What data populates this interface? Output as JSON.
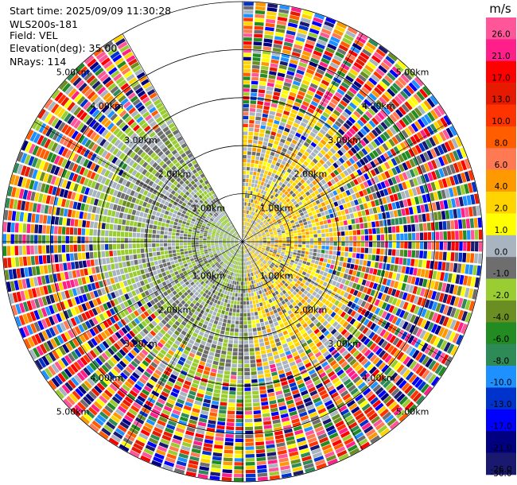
{
  "header": {
    "start_time": "Start time: 2025/09/09 11:30:28",
    "instrument": "WLS200s-181",
    "field": "Field: VEL",
    "elevation": "Elevation(deg): 35.00",
    "nrays": "NRays: 114"
  },
  "chart_data": {
    "type": "heatmap",
    "projection": "polar-ppi",
    "field": "VEL",
    "units": "m/s",
    "range_ring_labels": [
      "1.00km",
      "2.00km",
      "3.00km",
      "4.00km",
      "5.00km"
    ],
    "range_rings_km": [
      1,
      2,
      3,
      4,
      5
    ],
    "max_range_km": 5,
    "n_rays": 114,
    "gap_azimuth_deg": [
      330,
      360
    ],
    "colorbar": {
      "unit_label": "m/s",
      "ticks": [
        "26.0",
        "21.0",
        "17.0",
        "13.0",
        "10.0",
        "8.0",
        "6.0",
        "4.0",
        "2.0",
        "1.0",
        "0.0",
        "-1.0",
        "-2.0",
        "-4.0",
        "-6.0",
        "-8.0",
        "-10.0",
        "-13.0",
        "-17.0",
        "-21.0",
        "-26.0",
        "-30.0"
      ],
      "colors": [
        "#ff5599",
        "#ff1e8a",
        "#ff0000",
        "#e61a00",
        "#ff3300",
        "#ff5d00",
        "#ff7a52",
        "#ff9900",
        "#ffd400",
        "#ffff00",
        "#a8b4c0",
        "#6e6e6e",
        "#9acd32",
        "#6b8e23",
        "#228b22",
        "#2e8b57",
        "#1e90ff",
        "#0033cc",
        "#0000ff",
        "#000080",
        "#191970"
      ]
    },
    "regions": [
      {
        "sign": "positive",
        "azimuth_deg": [
          5,
          170
        ],
        "range_km": [
          0,
          2.0
        ],
        "dominant": "2.0 to 4.0"
      },
      {
        "sign": "negative",
        "azimuth_deg": [
          185,
          330
        ],
        "range_km": [
          0,
          2.8
        ],
        "dominant": "-1.0 to -4.0"
      }
    ]
  }
}
